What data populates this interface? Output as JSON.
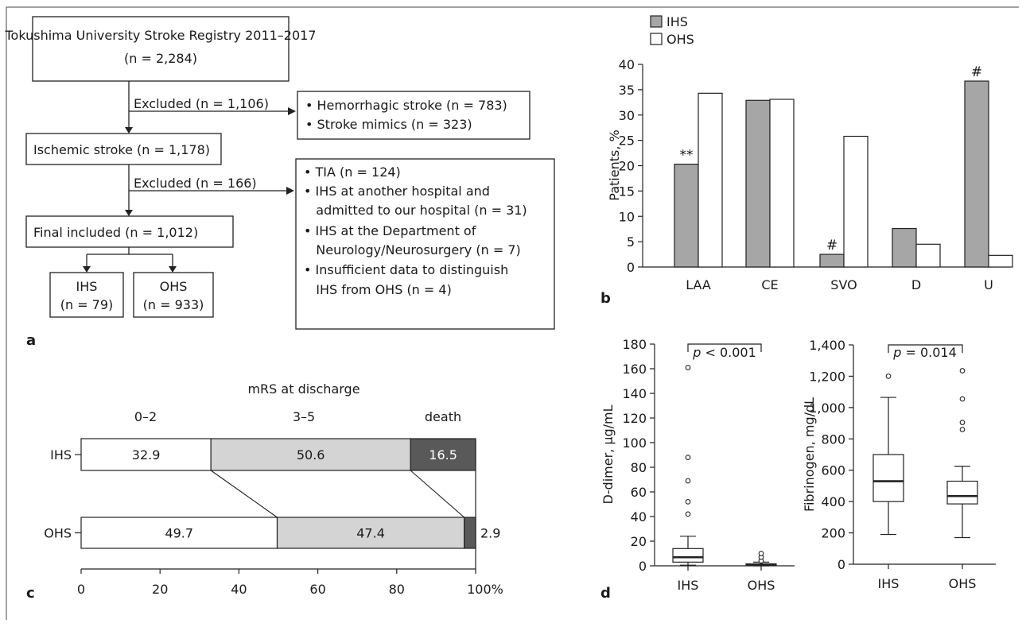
{
  "panel_labels": {
    "a": "a",
    "b": "b",
    "c": "c",
    "d": "d"
  },
  "flowchart": {
    "registry_line1": "Tokushima University Stroke Registry 2011–2017",
    "registry_line2": "(n = 2,284)",
    "excluded1": "Excluded (n = 1,106)",
    "exclusion1_items": [
      "• Hemorrhagic stroke (n = 783)",
      "• Stroke mimics (n = 323)"
    ],
    "ischemic": "Ischemic stroke (n = 1,178)",
    "excluded2": "Excluded (n = 166)",
    "exclusion2_items": [
      "• TIA (n = 124)",
      "• IHS at another hospital and",
      "   admitted to our hospital (n = 31)",
      "• IHS at the Department of",
      "   Neurology/Neurosurgery (n = 7)",
      "• Insufficient data to distinguish",
      "   IHS from OHS (n = 4)"
    ],
    "final": "Final included (n = 1,012)",
    "ihs_label": "IHS",
    "ihs_n": "(n = 79)",
    "ohs_label": "OHS",
    "ohs_n": "(n = 933)"
  },
  "colors": {
    "ihs": "#a6a6a6",
    "ohs": "#ffffff",
    "mrs_02": "#ffffff",
    "mrs_35": "#d4d4d4",
    "mrs_death": "#595959"
  },
  "chart_data": [
    {
      "id": "b",
      "type": "bar",
      "categories": [
        "LAA",
        "CE",
        "SVO",
        "D",
        "U"
      ],
      "series": [
        {
          "name": "IHS",
          "values": [
            20.3,
            32.9,
            2.5,
            7.6,
            36.7
          ]
        },
        {
          "name": "OHS",
          "values": [
            34.3,
            33.1,
            25.8,
            4.5,
            2.3
          ]
        }
      ],
      "annotations": [
        "**",
        "",
        "#",
        "",
        "#"
      ],
      "ylabel": "Patients, %",
      "ylim": [
        0,
        40
      ],
      "yticks": [
        0,
        5,
        10,
        15,
        20,
        25,
        30,
        35,
        40
      ],
      "legend_position": "top-left"
    },
    {
      "id": "c",
      "type": "bar",
      "orientation": "horizontal-stacked",
      "title": "mRS at discharge",
      "categories": [
        "IHS",
        "OHS"
      ],
      "segment_labels": [
        "0–2",
        "3–5",
        "death"
      ],
      "series": [
        {
          "name": "0–2",
          "values": [
            32.9,
            49.7
          ]
        },
        {
          "name": "3–5",
          "values": [
            50.6,
            47.4
          ]
        },
        {
          "name": "death",
          "values": [
            16.5,
            2.9
          ]
        }
      ],
      "value_labels": [
        [
          "32.9",
          "50.6",
          "16.5"
        ],
        [
          "49.7",
          "47.4",
          "2.9"
        ]
      ],
      "xlim": [
        0,
        100
      ],
      "xticks": [
        "0",
        "20",
        "40",
        "60",
        "80",
        "100%"
      ]
    },
    {
      "id": "d1",
      "type": "box",
      "categories": [
        "IHS",
        "OHS"
      ],
      "ylabel": "D-dimer, µg/mL",
      "ylim": [
        0,
        180
      ],
      "yticks": [
        "0",
        "20",
        "40",
        "60",
        "80",
        "100",
        "120",
        "140",
        "160",
        "180"
      ],
      "p_label": "p < 0.001",
      "boxes": [
        {
          "min": 0.5,
          "q1": 3,
          "median": 7,
          "q3": 14,
          "max": 24,
          "outliers": [
            42,
            52,
            69,
            88,
            161
          ]
        },
        {
          "min": 0,
          "q1": 0.4,
          "median": 0.9,
          "q3": 1.6,
          "max": 3,
          "outliers": [
            4,
            7,
            10
          ]
        }
      ]
    },
    {
      "id": "d2",
      "type": "box",
      "categories": [
        "IHS",
        "OHS"
      ],
      "ylabel": "Fibrinogen, mg/dL",
      "ylim": [
        0,
        1400
      ],
      "yticks": [
        "0",
        "200",
        "400",
        "600",
        "800",
        "1,000",
        "1,200",
        "1,400"
      ],
      "p_label": "p = 0.014",
      "boxes": [
        {
          "min": 190,
          "q1": 400,
          "median": 530,
          "q3": 700,
          "max": 1065,
          "outliers": [
            1200
          ]
        },
        {
          "min": 170,
          "q1": 385,
          "median": 435,
          "q3": 530,
          "max": 625,
          "outliers": [
            860,
            905,
            1055,
            1235
          ]
        }
      ]
    }
  ]
}
